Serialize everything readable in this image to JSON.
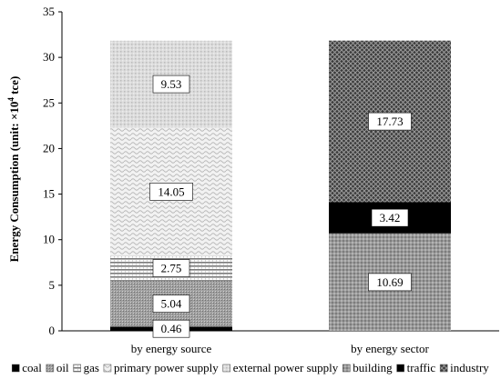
{
  "chart_data": {
    "type": "bar",
    "stacked": true,
    "ylabel": "Energy Consumption (unit: ×10⁴ tce)",
    "ylabel_prefix": "Energy Consumption (unit: ×10",
    "ylabel_sup": "4",
    "ylabel_suffix": " tce)",
    "ylim": [
      0,
      35
    ],
    "yticks": [
      0,
      5,
      10,
      15,
      20,
      25,
      30,
      35
    ],
    "grid": false,
    "legend_position": "bottom",
    "categories": [
      "by energy source",
      "by energy sector"
    ],
    "series": [
      {
        "name": "coal",
        "values": [
          0.46,
          null
        ],
        "pattern": "solid-black"
      },
      {
        "name": "oil",
        "values": [
          5.04,
          null
        ],
        "pattern": "dense-gray"
      },
      {
        "name": "gas",
        "values": [
          2.75,
          null
        ],
        "pattern": "horizontal-lines"
      },
      {
        "name": "primary power supply",
        "values": [
          14.05,
          null
        ],
        "pattern": "waves"
      },
      {
        "name": "external power supply",
        "values": [
          9.53,
          null
        ],
        "pattern": "light-dots"
      },
      {
        "name": "building",
        "values": [
          null,
          10.69
        ],
        "pattern": "gray-checker"
      },
      {
        "name": "traffic",
        "values": [
          null,
          3.42
        ],
        "pattern": "solid-black"
      },
      {
        "name": "industry",
        "values": [
          null,
          17.73
        ],
        "pattern": "dark-cross"
      }
    ],
    "data_labels": [
      [
        "0.46",
        null
      ],
      [
        "5.04",
        null
      ],
      [
        "2.75",
        null
      ],
      [
        "14.05",
        null
      ],
      [
        "9.53",
        null
      ],
      [
        null,
        "10.69"
      ],
      [
        null,
        "3.42"
      ],
      [
        null,
        "17.73"
      ]
    ]
  }
}
